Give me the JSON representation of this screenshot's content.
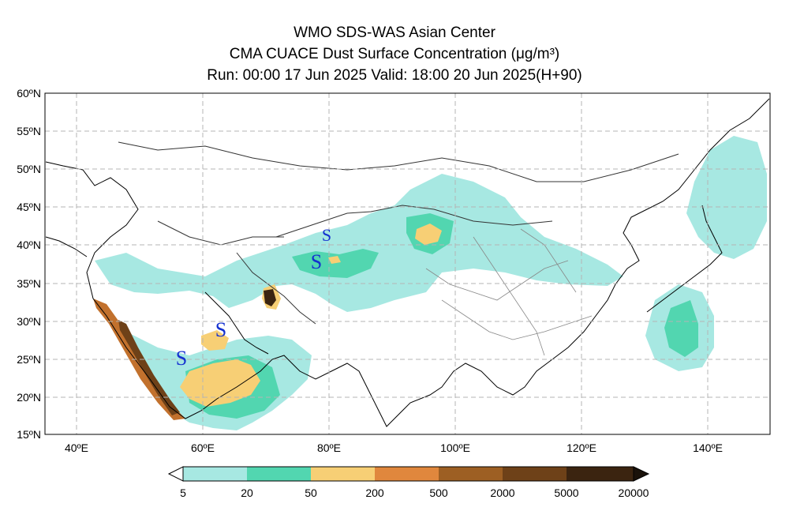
{
  "header": {
    "line1": "WMO SDS-WAS Asian Center",
    "line2": "CMA CUACE Dust Surface Concentration (μg/m³)",
    "line3": "Run: 00:00 17 Jun 2025     Valid: 18:00 20 Jun 2025(H+90)"
  },
  "map": {
    "lat_labels": [
      "60ºN",
      "55ºN",
      "50ºN",
      "45ºN",
      "40ºN",
      "35ºN",
      "30ºN",
      "25ºN",
      "20ºN",
      "15ºN"
    ],
    "lon_labels": [
      "40ºE",
      "60ºE",
      "80ºE",
      "100ºE",
      "120ºE",
      "140ºE"
    ],
    "extent": {
      "lon_min": 35,
      "lon_max": 150,
      "lat_min": 15,
      "lat_max": 60
    },
    "storm_marker": "S",
    "storm_markers_count": 4
  },
  "colorbar": {
    "labels": [
      "5",
      "20",
      "50",
      "200",
      "500",
      "2000",
      "5000",
      "20000"
    ],
    "colors": [
      "#a7e8e2",
      "#52d6b0",
      "#f7cf75",
      "#e0873d",
      "#9d5f23",
      "#6e4118",
      "#3b2410"
    ]
  },
  "colors": {
    "dust_light": "#a7e8e2",
    "dust_mid": "#52d6b0",
    "dust_high": "#f7cf75",
    "marker": "#1430d0",
    "grid": "#b4b4b4"
  }
}
